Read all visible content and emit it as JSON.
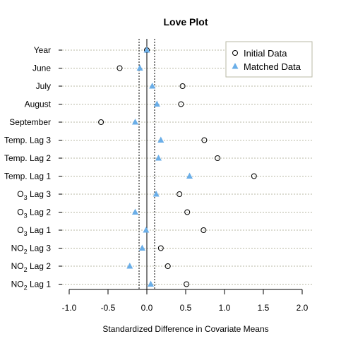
{
  "chart_data": {
    "type": "scatter",
    "title": "Love Plot",
    "xlabel": "Standardized Difference in Covariate Means",
    "ylabel": "",
    "xlim": [
      -1.0,
      2.0
    ],
    "xticks": [
      "-1.0",
      "-0.5",
      "0.0",
      "0.5",
      "1.0",
      "1.5",
      "2.0"
    ],
    "reference_lines": [
      -0.1,
      0.0,
      0.1
    ],
    "grid": "horizontal dotted lines at each covariate",
    "legend_position": "top-right",
    "categories": [
      {
        "base": "Year",
        "sub": "",
        "suffix": ""
      },
      {
        "base": "June",
        "sub": "",
        "suffix": ""
      },
      {
        "base": "July",
        "sub": "",
        "suffix": ""
      },
      {
        "base": "August",
        "sub": "",
        "suffix": ""
      },
      {
        "base": "September",
        "sub": "",
        "suffix": ""
      },
      {
        "base": "Temp. Lag 3",
        "sub": "",
        "suffix": ""
      },
      {
        "base": "Temp. Lag 2",
        "sub": "",
        "suffix": ""
      },
      {
        "base": "Temp. Lag 1",
        "sub": "",
        "suffix": ""
      },
      {
        "base": "O",
        "sub": "3",
        "suffix": " Lag 3"
      },
      {
        "base": "O",
        "sub": "3",
        "suffix": " Lag 2"
      },
      {
        "base": "O",
        "sub": "3",
        "suffix": " Lag 1"
      },
      {
        "base": "NO",
        "sub": "2",
        "suffix": " Lag 3"
      },
      {
        "base": "NO",
        "sub": "2",
        "suffix": " Lag 2"
      },
      {
        "base": "NO",
        "sub": "2",
        "suffix": " Lag 1"
      }
    ],
    "series": [
      {
        "name": "Initial Data",
        "marker": "open-circle",
        "color": "#000000",
        "values": [
          0.0,
          -0.35,
          0.46,
          0.44,
          -0.59,
          0.74,
          0.91,
          1.38,
          0.42,
          0.52,
          0.73,
          0.18,
          0.27,
          0.51
        ]
      },
      {
        "name": "Matched Data",
        "marker": "filled-triangle",
        "color": "#6aaee8",
        "values": [
          0.0,
          -0.09,
          0.07,
          0.13,
          -0.15,
          0.18,
          0.15,
          0.55,
          0.12,
          -0.15,
          -0.01,
          -0.06,
          -0.22,
          0.05
        ]
      }
    ]
  }
}
